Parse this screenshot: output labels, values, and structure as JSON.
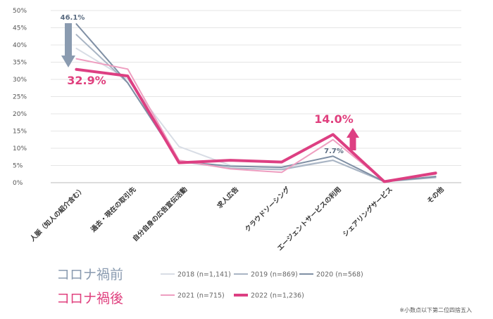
{
  "chart_data": {
    "type": "line",
    "categories": [
      "人脈（知人の紹介含む）",
      "過去・現在の取引先",
      "自分自身の広告宣伝活動",
      "求人広告",
      "クラウドソーシング",
      "エージェントサービスの利用",
      "シェアリングサービス",
      "その他"
    ],
    "y_ticks": [
      "0%",
      "5%",
      "10%",
      "15%",
      "20%",
      "25%",
      "30%",
      "35%",
      "40%",
      "45%",
      "50%"
    ],
    "ylim": [
      0,
      50
    ],
    "series": [
      {
        "name": "2018 (n=1,141)",
        "color": "#d8dde5",
        "width": 2,
        "values": [
          39,
          30,
          10.5,
          5,
          4.2,
          6.5,
          0.5,
          1.5
        ]
      },
      {
        "name": "2019 (n=869)",
        "color": "#a9b5c4",
        "width": 2,
        "values": [
          43,
          29,
          6.2,
          4.2,
          3.8,
          6.5,
          0.3,
          1.5
        ]
      },
      {
        "name": "2020 (n=568)",
        "color": "#7f8fa4",
        "width": 2,
        "values": [
          46.1,
          29,
          6.2,
          4.8,
          4.5,
          7.7,
          0.3,
          1.8
        ]
      },
      {
        "name": "2021 (n=715)",
        "color": "#ee9ec0",
        "width": 2,
        "values": [
          36,
          33,
          6.5,
          4,
          3,
          12.5,
          0.4,
          2.5
        ]
      },
      {
        "name": "2022 (n=1,236)",
        "color": "#dd3f82",
        "width": 4,
        "values": [
          32.9,
          31,
          5.8,
          6.5,
          6,
          14.0,
          0.3,
          2.8
        ]
      }
    ],
    "annotations": {
      "a_2020_first": "46.1%",
      "a_2022_first": "32.9%",
      "a_2022_agent": "14.0%",
      "a_2020_agent": "7.7%"
    },
    "legend": {
      "before_label": "コロナ禍前",
      "after_label": "コロナ禍後"
    },
    "note": "※小数点以下第二位四捨五入",
    "colors": {
      "arrow_down": "#8a9bb0",
      "arrow_up": "#dd3f82",
      "grid": "#e5e5e5"
    }
  }
}
